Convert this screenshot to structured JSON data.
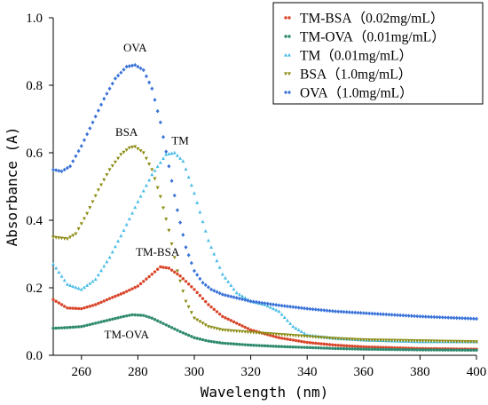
{
  "chart_data": {
    "type": "scatter",
    "xlabel": "Wavelength (nm)",
    "ylabel": "Absorbance (A)",
    "xlim": [
      250,
      400
    ],
    "ylim": [
      0.0,
      1.0
    ],
    "xticks": [
      "260",
      "280",
      "300",
      "320",
      "340",
      "360",
      "380",
      "400"
    ],
    "yticks": [
      "0.0",
      "0.2",
      "0.4",
      "0.6",
      "0.8",
      "1.0"
    ],
    "legend_position": "top-right",
    "series": [
      {
        "name": "TM-BSA（0.02mg/mL）",
        "color": "#d9452a",
        "marker": "circle",
        "x": [
          250,
          255,
          260,
          265,
          270,
          275,
          280,
          285,
          288,
          291,
          295,
          300,
          305,
          310,
          320,
          330,
          340,
          350,
          360,
          380,
          400
        ],
        "values": [
          0.165,
          0.14,
          0.138,
          0.15,
          0.168,
          0.185,
          0.205,
          0.24,
          0.262,
          0.258,
          0.235,
          0.195,
          0.15,
          0.115,
          0.075,
          0.052,
          0.038,
          0.03,
          0.025,
          0.02,
          0.018
        ]
      },
      {
        "name": "TM-OVA（0.01mg/mL）",
        "color": "#2e8a6e",
        "marker": "circle",
        "x": [
          250,
          255,
          260,
          265,
          270,
          275,
          278,
          282,
          285,
          290,
          295,
          300,
          305,
          310,
          320,
          330,
          340,
          350,
          360,
          380,
          400
        ],
        "values": [
          0.08,
          0.082,
          0.085,
          0.095,
          0.105,
          0.115,
          0.12,
          0.118,
          0.11,
          0.09,
          0.07,
          0.052,
          0.042,
          0.036,
          0.03,
          0.026,
          0.023,
          0.02,
          0.018,
          0.016,
          0.015
        ]
      },
      {
        "name": "TM（0.01mg/mL）",
        "color": "#4bbde6",
        "marker": "triangle",
        "x": [
          250,
          255,
          260,
          265,
          270,
          275,
          280,
          285,
          290,
          293,
          296,
          300,
          305,
          310,
          315,
          320,
          325,
          330,
          335,
          340,
          350,
          360,
          380,
          400
        ],
        "values": [
          0.27,
          0.21,
          0.195,
          0.225,
          0.29,
          0.37,
          0.455,
          0.535,
          0.595,
          0.6,
          0.575,
          0.48,
          0.34,
          0.24,
          0.185,
          0.16,
          0.15,
          0.13,
          0.085,
          0.06,
          0.05,
          0.045,
          0.04,
          0.04
        ]
      },
      {
        "name": "BSA（1.0mg/mL）",
        "color": "#8a8a10",
        "marker": "triangle-down",
        "x": [
          250,
          255,
          258,
          262,
          266,
          270,
          274,
          277,
          279,
          282,
          285,
          288,
          291,
          294,
          297,
          300,
          305,
          310,
          320,
          330,
          340,
          350,
          360,
          380,
          400
        ],
        "values": [
          0.35,
          0.345,
          0.36,
          0.42,
          0.49,
          0.55,
          0.595,
          0.615,
          0.618,
          0.6,
          0.55,
          0.47,
          0.37,
          0.25,
          0.16,
          0.11,
          0.085,
          0.075,
          0.068,
          0.062,
          0.056,
          0.05,
          0.046,
          0.043,
          0.04
        ]
      },
      {
        "name": "OVA（1.0mg/mL）",
        "color": "#3a72d8",
        "marker": "diamond",
        "x": [
          250,
          253,
          256,
          260,
          264,
          268,
          272,
          276,
          279,
          282,
          285,
          288,
          291,
          294,
          297,
          300,
          303,
          306,
          310,
          315,
          320,
          330,
          340,
          350,
          360,
          380,
          400
        ],
        "values": [
          0.55,
          0.545,
          0.56,
          0.62,
          0.69,
          0.76,
          0.82,
          0.855,
          0.86,
          0.845,
          0.79,
          0.69,
          0.56,
          0.43,
          0.32,
          0.25,
          0.215,
          0.195,
          0.18,
          0.17,
          0.16,
          0.148,
          0.138,
          0.13,
          0.125,
          0.115,
          0.108
        ]
      }
    ],
    "annotations": [
      {
        "text": "OVA",
        "x": 279,
        "y": 0.9
      },
      {
        "text": "BSA",
        "x": 276,
        "y": 0.65
      },
      {
        "text": "TM",
        "x": 295,
        "y": 0.625
      },
      {
        "text": "TM-BSA",
        "x": 287,
        "y": 0.295
      },
      {
        "text": "TM-OVA",
        "x": 276,
        "y": 0.05
      }
    ]
  }
}
